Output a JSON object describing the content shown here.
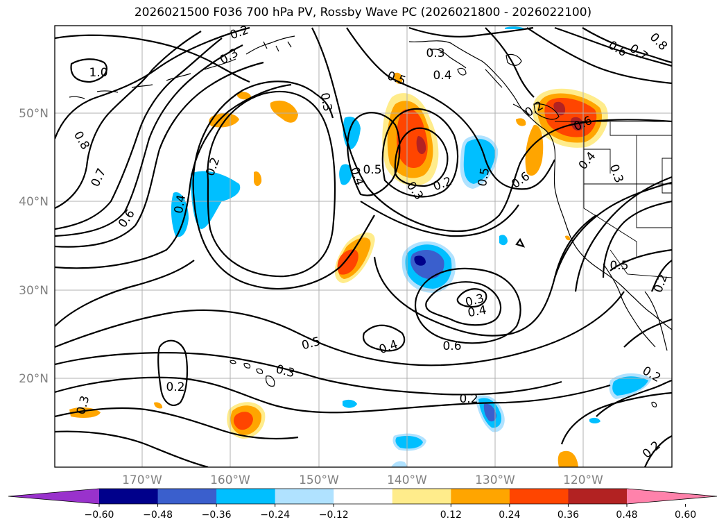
{
  "title": "2026021500 F036 700 hPa PV, Rossby Wave PC (2026021800 - 2026022100)",
  "lat_labels": [
    "50°N",
    "40°N",
    "30°N",
    "20°N"
  ],
  "lon_labels": [
    "170°W",
    "160°W",
    "150°W",
    "140°W",
    "130°W",
    "120°W"
  ],
  "colorbar": {
    "tick_labels": [
      "−0.60",
      "−0.48",
      "−0.36",
      "−0.24",
      "−0.12",
      "0.12",
      "0.24",
      "0.36",
      "0.48",
      "0.60"
    ],
    "colors": [
      "#9932cc",
      "#00008b",
      "#3a5fcd",
      "#00bfff",
      "#b0e2ff",
      "#ffffff",
      "#ffec8b",
      "#ffa500",
      "#ff4500",
      "#b22222",
      "#ff82ab"
    ]
  },
  "contour_labels": [
    "1.0",
    "0.8",
    "0.7",
    "0.6",
    "0.4",
    "0.2",
    "0.3",
    "0.2",
    "0.3",
    "0.4",
    "0.5",
    "0.3",
    "0.2",
    "0.5",
    "0.6",
    "0.4",
    "0.3",
    "0.6",
    "0.7",
    "0.8",
    "0.6",
    "0.4",
    "0.3",
    "0.3",
    "0.4",
    "0.6",
    "0.5",
    "0.4",
    "0.3",
    "0.2",
    "0.2",
    "0.3",
    "0.5",
    "0.2",
    "0.2",
    "0.2",
    "0.5",
    "0.2"
  ]
}
